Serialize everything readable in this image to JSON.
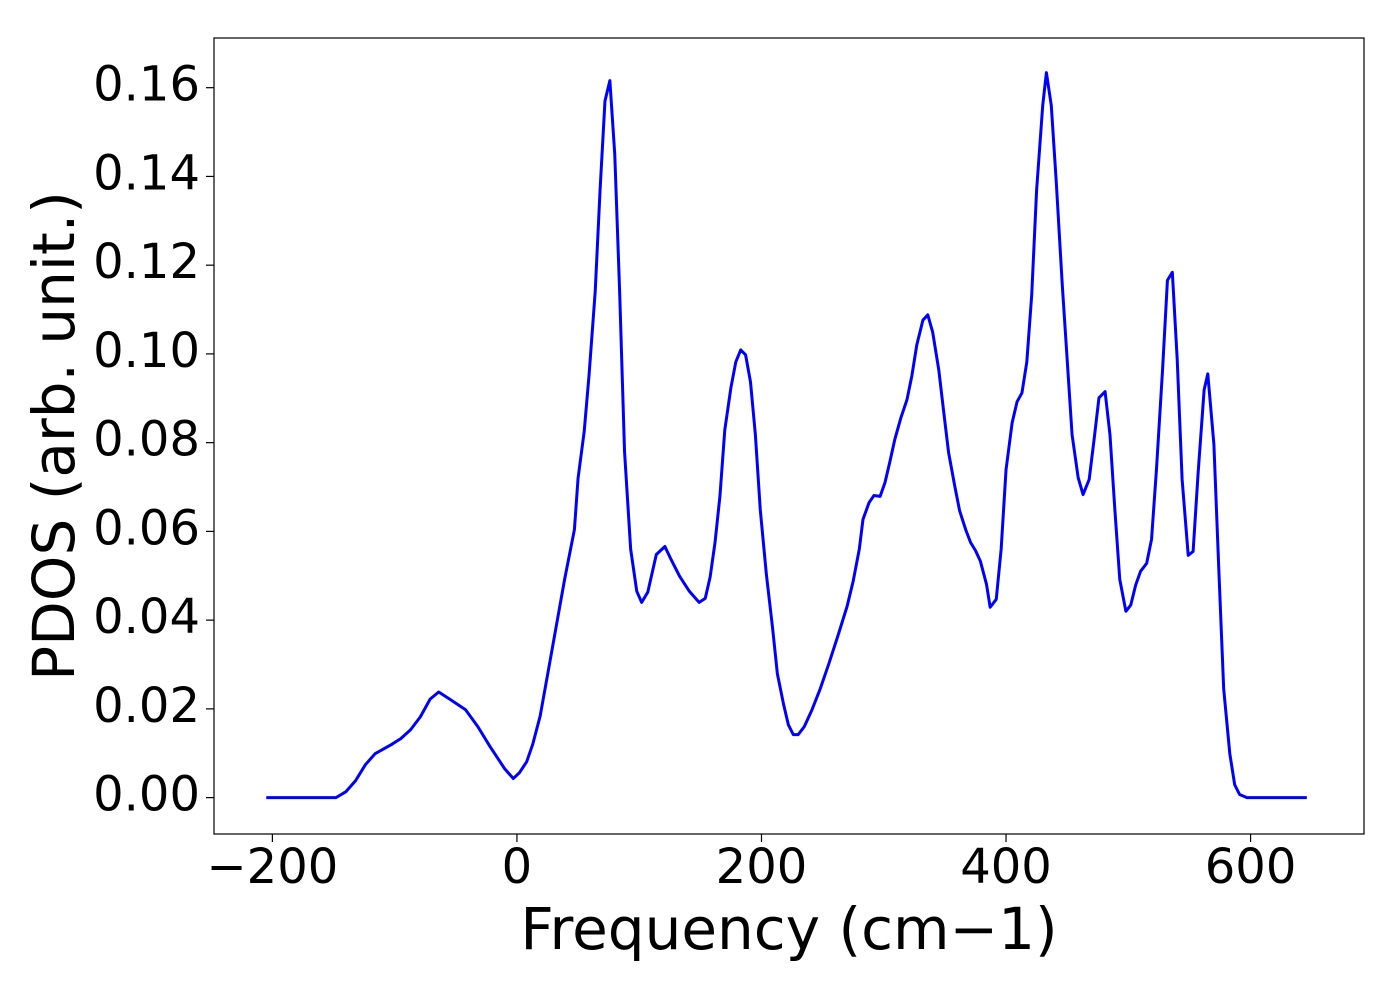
{
  "chart_data": {
    "type": "line",
    "xlabel": "Frequency (cm−1)",
    "ylabel": "PDOS (arb. unit.)",
    "xlim": [
      -247.75,
      692.75
    ],
    "ylim": [
      -0.0082,
      0.1712
    ],
    "xticks": [
      {
        "value": -200,
        "label": "−200"
      },
      0,
      200,
      400,
      600
    ],
    "yticks": [
      {
        "value": 0,
        "label": "0.00"
      },
      {
        "value": 0.02,
        "label": "0.02"
      },
      {
        "value": 0.04,
        "label": "0.04"
      },
      {
        "value": 0.06,
        "label": "0.06"
      },
      {
        "value": 0.08,
        "label": "0.08"
      },
      {
        "value": 0.1,
        "label": "0.10"
      },
      {
        "value": 0.12,
        "label": "0.12"
      },
      {
        "value": 0.14,
        "label": "0.14"
      },
      {
        "value": 0.16,
        "label": "0.16"
      }
    ],
    "grid": false,
    "series": [
      {
        "color": "#0000ff",
        "x": [
          -205,
          -148,
          -140,
          -132,
          -124,
          -116,
          -103,
          -95,
          -87,
          -79,
          -71,
          -64,
          -55,
          -42,
          -32,
          -22,
          -10,
          -3,
          2,
          8,
          13,
          19,
          25,
          32,
          39,
          47,
          50,
          55,
          59,
          64,
          68,
          72,
          76,
          80,
          84,
          88,
          93,
          98,
          102,
          107,
          114,
          121,
          126,
          133,
          141,
          149,
          154,
          158,
          162,
          166,
          170,
          175,
          179,
          183,
          187,
          191,
          195,
          199,
          204,
          209,
          213,
          218,
          222,
          226,
          230,
          235,
          241,
          248,
          255,
          263,
          270,
          275,
          280,
          283,
          288,
          292,
          297,
          301,
          305,
          309,
          314,
          319,
          323,
          327,
          332,
          336,
          340,
          345,
          349,
          353,
          358,
          362,
          367,
          371,
          375,
          379,
          384,
          387,
          392,
          396,
          400,
          405,
          409,
          413,
          417,
          421,
          425,
          430,
          433,
          437,
          441,
          446,
          450,
          454,
          459,
          463,
          468,
          472,
          476,
          481,
          485,
          489,
          493,
          498,
          502,
          506,
          510,
          515,
          519,
          523,
          528,
          532,
          536,
          540,
          544,
          549,
          553,
          557,
          562,
          565,
          570,
          574,
          578,
          583,
          587,
          591,
          597,
          646
        ],
        "values": [
          0,
          0,
          0.0013,
          0.0038,
          0.0074,
          0.0099,
          0.0119,
          0.0133,
          0.0153,
          0.0182,
          0.0222,
          0.0238,
          0.0222,
          0.0198,
          0.016,
          0.0115,
          0.0065,
          0.0043,
          0.0056,
          0.0081,
          0.0121,
          0.0184,
          0.0276,
          0.0384,
          0.0492,
          0.0604,
          0.072,
          0.0825,
          0.0953,
          0.114,
          0.137,
          0.157,
          0.1616,
          0.145,
          0.114,
          0.078,
          0.056,
          0.0465,
          0.044,
          0.0463,
          0.0548,
          0.0566,
          0.0537,
          0.0499,
          0.0465,
          0.044,
          0.0449,
          0.0497,
          0.0575,
          0.0679,
          0.0829,
          0.0924,
          0.0982,
          0.1009,
          0.0998,
          0.0937,
          0.0818,
          0.0649,
          0.0503,
          0.0384,
          0.0279,
          0.0211,
          0.0164,
          0.0142,
          0.0142,
          0.016,
          0.0196,
          0.0245,
          0.0301,
          0.0369,
          0.0431,
          0.0488,
          0.056,
          0.0627,
          0.0665,
          0.0681,
          0.0679,
          0.071,
          0.0757,
          0.0807,
          0.0856,
          0.0897,
          0.0951,
          0.102,
          0.1076,
          0.1088,
          0.1049,
          0.0964,
          0.087,
          0.0778,
          0.0703,
          0.0647,
          0.0604,
          0.0575,
          0.0557,
          0.0533,
          0.0481,
          0.0429,
          0.0447,
          0.056,
          0.0739,
          0.0845,
          0.0892,
          0.0912,
          0.0982,
          0.1133,
          0.1369,
          0.156,
          0.1634,
          0.156,
          0.1391,
          0.1155,
          0.0987,
          0.0818,
          0.0721,
          0.0683,
          0.0717,
          0.0807,
          0.0901,
          0.0915,
          0.0818,
          0.0649,
          0.0492,
          0.042,
          0.0434,
          0.0479,
          0.051,
          0.0528,
          0.0582,
          0.0739,
          0.0964,
          0.1166,
          0.1184,
          0.0987,
          0.0717,
          0.0546,
          0.0555,
          0.0728,
          0.0919,
          0.0955,
          0.0796,
          0.0515,
          0.0245,
          0.0099,
          0.0029,
          0.0007,
          0,
          0
        ]
      }
    ]
  }
}
